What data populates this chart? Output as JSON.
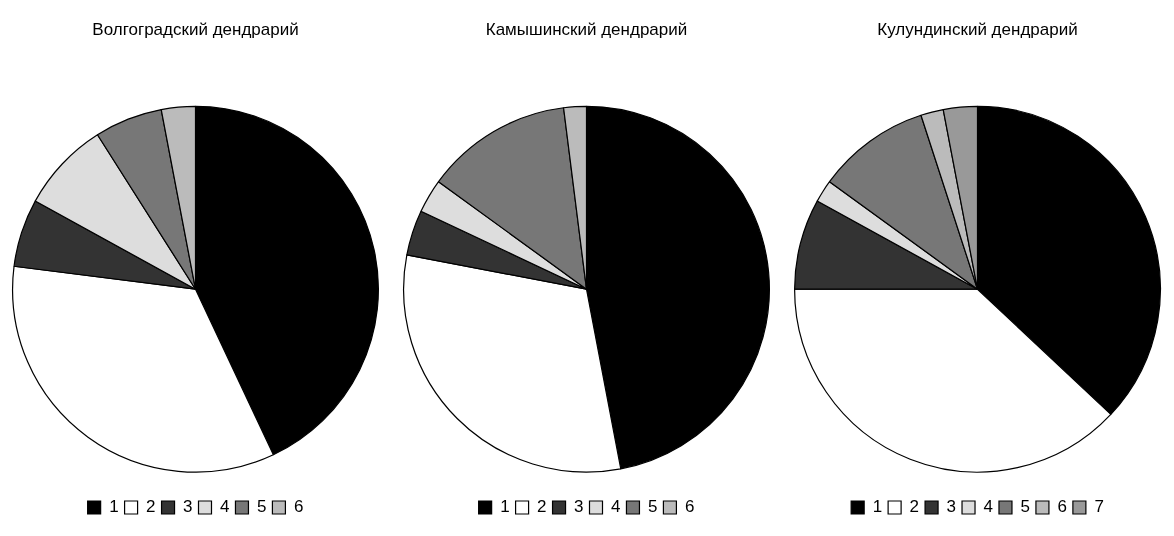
{
  "chart_data": [
    {
      "type": "pie",
      "title": "Волгоградский дендрарий",
      "categories": [
        "1",
        "2",
        "3",
        "4",
        "5",
        "6"
      ],
      "values": [
        43,
        34,
        6,
        8,
        6,
        3
      ],
      "colors": [
        "#000000",
        "#ffffff",
        "#333333",
        "#dddddd",
        "#777777",
        "#bbbbbb"
      ],
      "legend": "bottom"
    },
    {
      "type": "pie",
      "title": "Камышинский дендрарий",
      "categories": [
        "1",
        "2",
        "3",
        "4",
        "5",
        "6"
      ],
      "values": [
        47,
        31,
        4,
        3,
        13,
        2
      ],
      "colors": [
        "#000000",
        "#ffffff",
        "#333333",
        "#dddddd",
        "#777777",
        "#bbbbbb"
      ],
      "legend": "bottom"
    },
    {
      "type": "pie",
      "title": "Кулундинский дендрарий",
      "categories": [
        "1",
        "2",
        "3",
        "4",
        "5",
        "6",
        "7"
      ],
      "values": [
        37,
        38,
        8,
        2,
        10,
        2,
        3
      ],
      "colors": [
        "#000000",
        "#ffffff",
        "#333333",
        "#dddddd",
        "#777777",
        "#bbbbbb",
        "#999999"
      ],
      "legend": "bottom"
    }
  ]
}
